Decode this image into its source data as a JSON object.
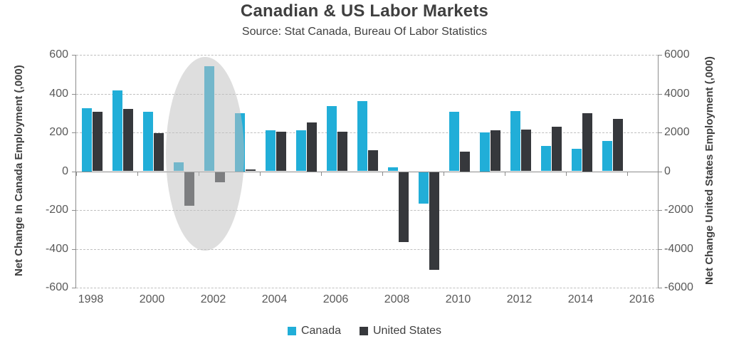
{
  "title": "Canadian & US Labor Markets",
  "subtitle": "Source: Stat Canada, Bureau Of Labor Statistics",
  "colors": {
    "canada": "#21AED8",
    "united_states": "#36383C",
    "highlight_ellipse": "#BFBFBF",
    "gridline": "#BFBFBF",
    "axis_line": "#8C8C8C",
    "tick_text": "#595959",
    "title_text": "#3F3F3F"
  },
  "chart_data": {
    "type": "bar",
    "title": "Canadian & US Labor Markets",
    "subtitle": "Source: Stat Canada, Bureau Of Labor Statistics",
    "categories": [
      1998,
      1999,
      2000,
      2001,
      2002,
      2003,
      2004,
      2005,
      2006,
      2007,
      2008,
      2009,
      2010,
      2011,
      2012,
      2013,
      2014,
      2015
    ],
    "series": [
      {
        "name": "Canada",
        "axis": "left",
        "color": "#21AED8",
        "values": [
          325,
          415,
          305,
          45,
          540,
          300,
          210,
          210,
          335,
          360,
          20,
          -165,
          305,
          200,
          310,
          130,
          115,
          155
        ]
      },
      {
        "name": "United States",
        "axis": "right",
        "color": "#36383C",
        "values": [
          3050,
          3200,
          1950,
          -1750,
          -550,
          100,
          2050,
          2500,
          2050,
          1100,
          -3600,
          -5050,
          1000,
          2100,
          2150,
          2300,
          3000,
          2700
        ]
      }
    ],
    "left_axis": {
      "label": "Net Change In Canada Employment (,000)",
      "min": -600,
      "max": 600,
      "tick_step": 200
    },
    "right_axis": {
      "label": "Net Change United States Employment (,000)",
      "min": -6000,
      "max": 6000,
      "tick_step": 2000
    },
    "x_axis": {
      "tick_label_years": [
        1998,
        2000,
        2002,
        2004,
        2006,
        2008,
        2010,
        2012,
        2014,
        2016
      ],
      "last_year_shown": 2016,
      "categories_span": 19
    },
    "legend": {
      "position": "bottom",
      "entries": [
        "Canada",
        "United States"
      ]
    },
    "grid": "dashed horizontal at each left-axis step, solid zero line",
    "annotations": [
      {
        "type": "ellipse-highlight",
        "covers": "2001-2003 dot-com recession bars",
        "x_year_center": 2001.72,
        "rx_years": 1.28,
        "y_value_center": 90,
        "ry_value": 500
      }
    ]
  }
}
